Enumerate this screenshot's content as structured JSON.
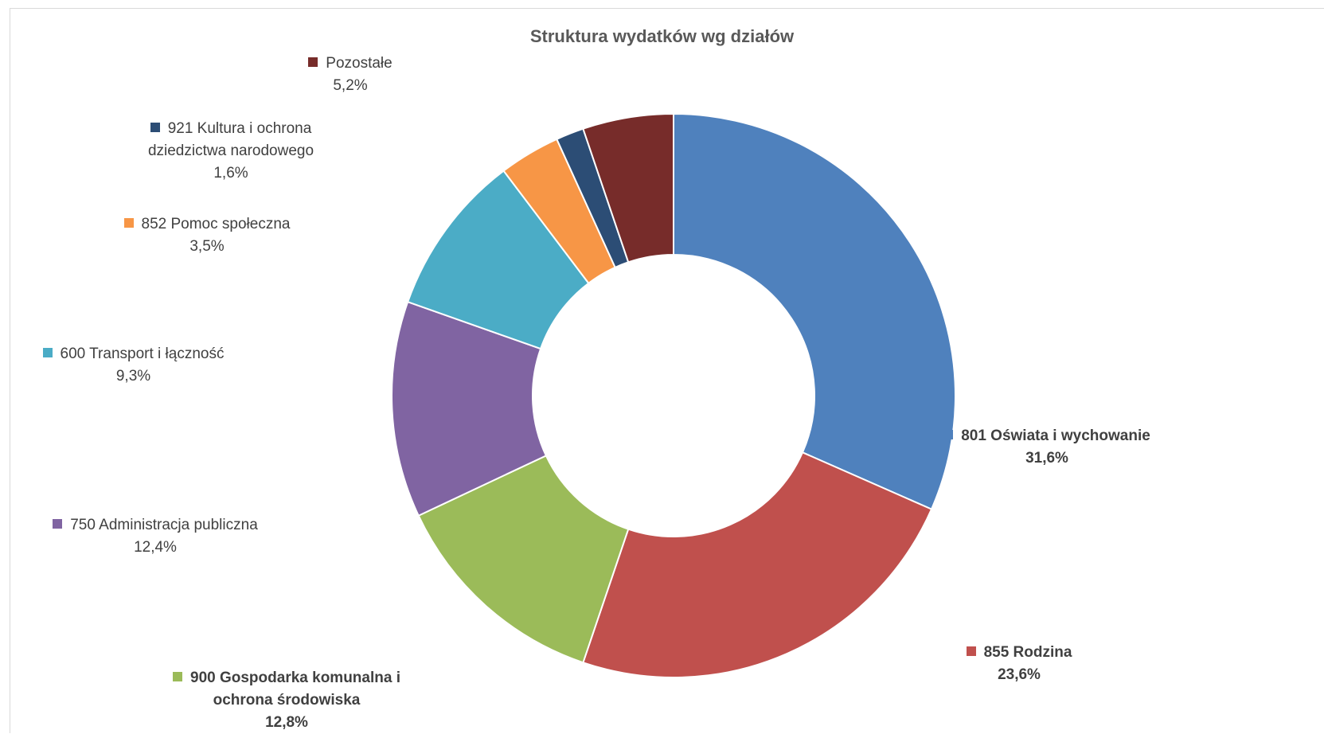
{
  "chart_data": {
    "type": "pie",
    "variant": "donut",
    "title": "Struktura wydatków wg działów",
    "slices": [
      {
        "label": "801 Oświata i wychowanie",
        "value": 31.6,
        "display": "31,6%",
        "color": "#4F81BD",
        "bold": true
      },
      {
        "label": "855 Rodzina",
        "value": 23.6,
        "display": "23,6%",
        "color": "#C0504D",
        "bold": true
      },
      {
        "label": "900 Gospodarka komunalna i ochrona środowiska",
        "label_lines": [
          "900 Gospodarka komunalna i",
          "ochrona środowiska"
        ],
        "value": 12.8,
        "display": "12,8%",
        "color": "#9BBB59",
        "bold": true
      },
      {
        "label": "750 Administracja publiczna",
        "value": 12.4,
        "display": "12,4%",
        "color": "#8064A2",
        "bold": false
      },
      {
        "label": "600 Transport i łączność",
        "value": 9.3,
        "display": "9,3%",
        "color": "#4BACC6",
        "bold": false
      },
      {
        "label": "852 Pomoc społeczna",
        "value": 3.5,
        "display": "3,5%",
        "color": "#F79646",
        "bold": false
      },
      {
        "label": "921 Kultura i ochrona dziedzictwa narodowego",
        "label_lines": [
          "921 Kultura i ochrona",
          "dziedzictwa narodowego"
        ],
        "value": 1.6,
        "display": "1,6%",
        "color": "#2C4D75",
        "bold": false
      },
      {
        "label": "Pozostałe",
        "value": 5.2,
        "display": "5,2%",
        "color": "#772C2A",
        "bold": false
      }
    ],
    "start": "top (12 o'clock)",
    "direction": "clockwise",
    "legend": "none (data labels beside slices)"
  }
}
